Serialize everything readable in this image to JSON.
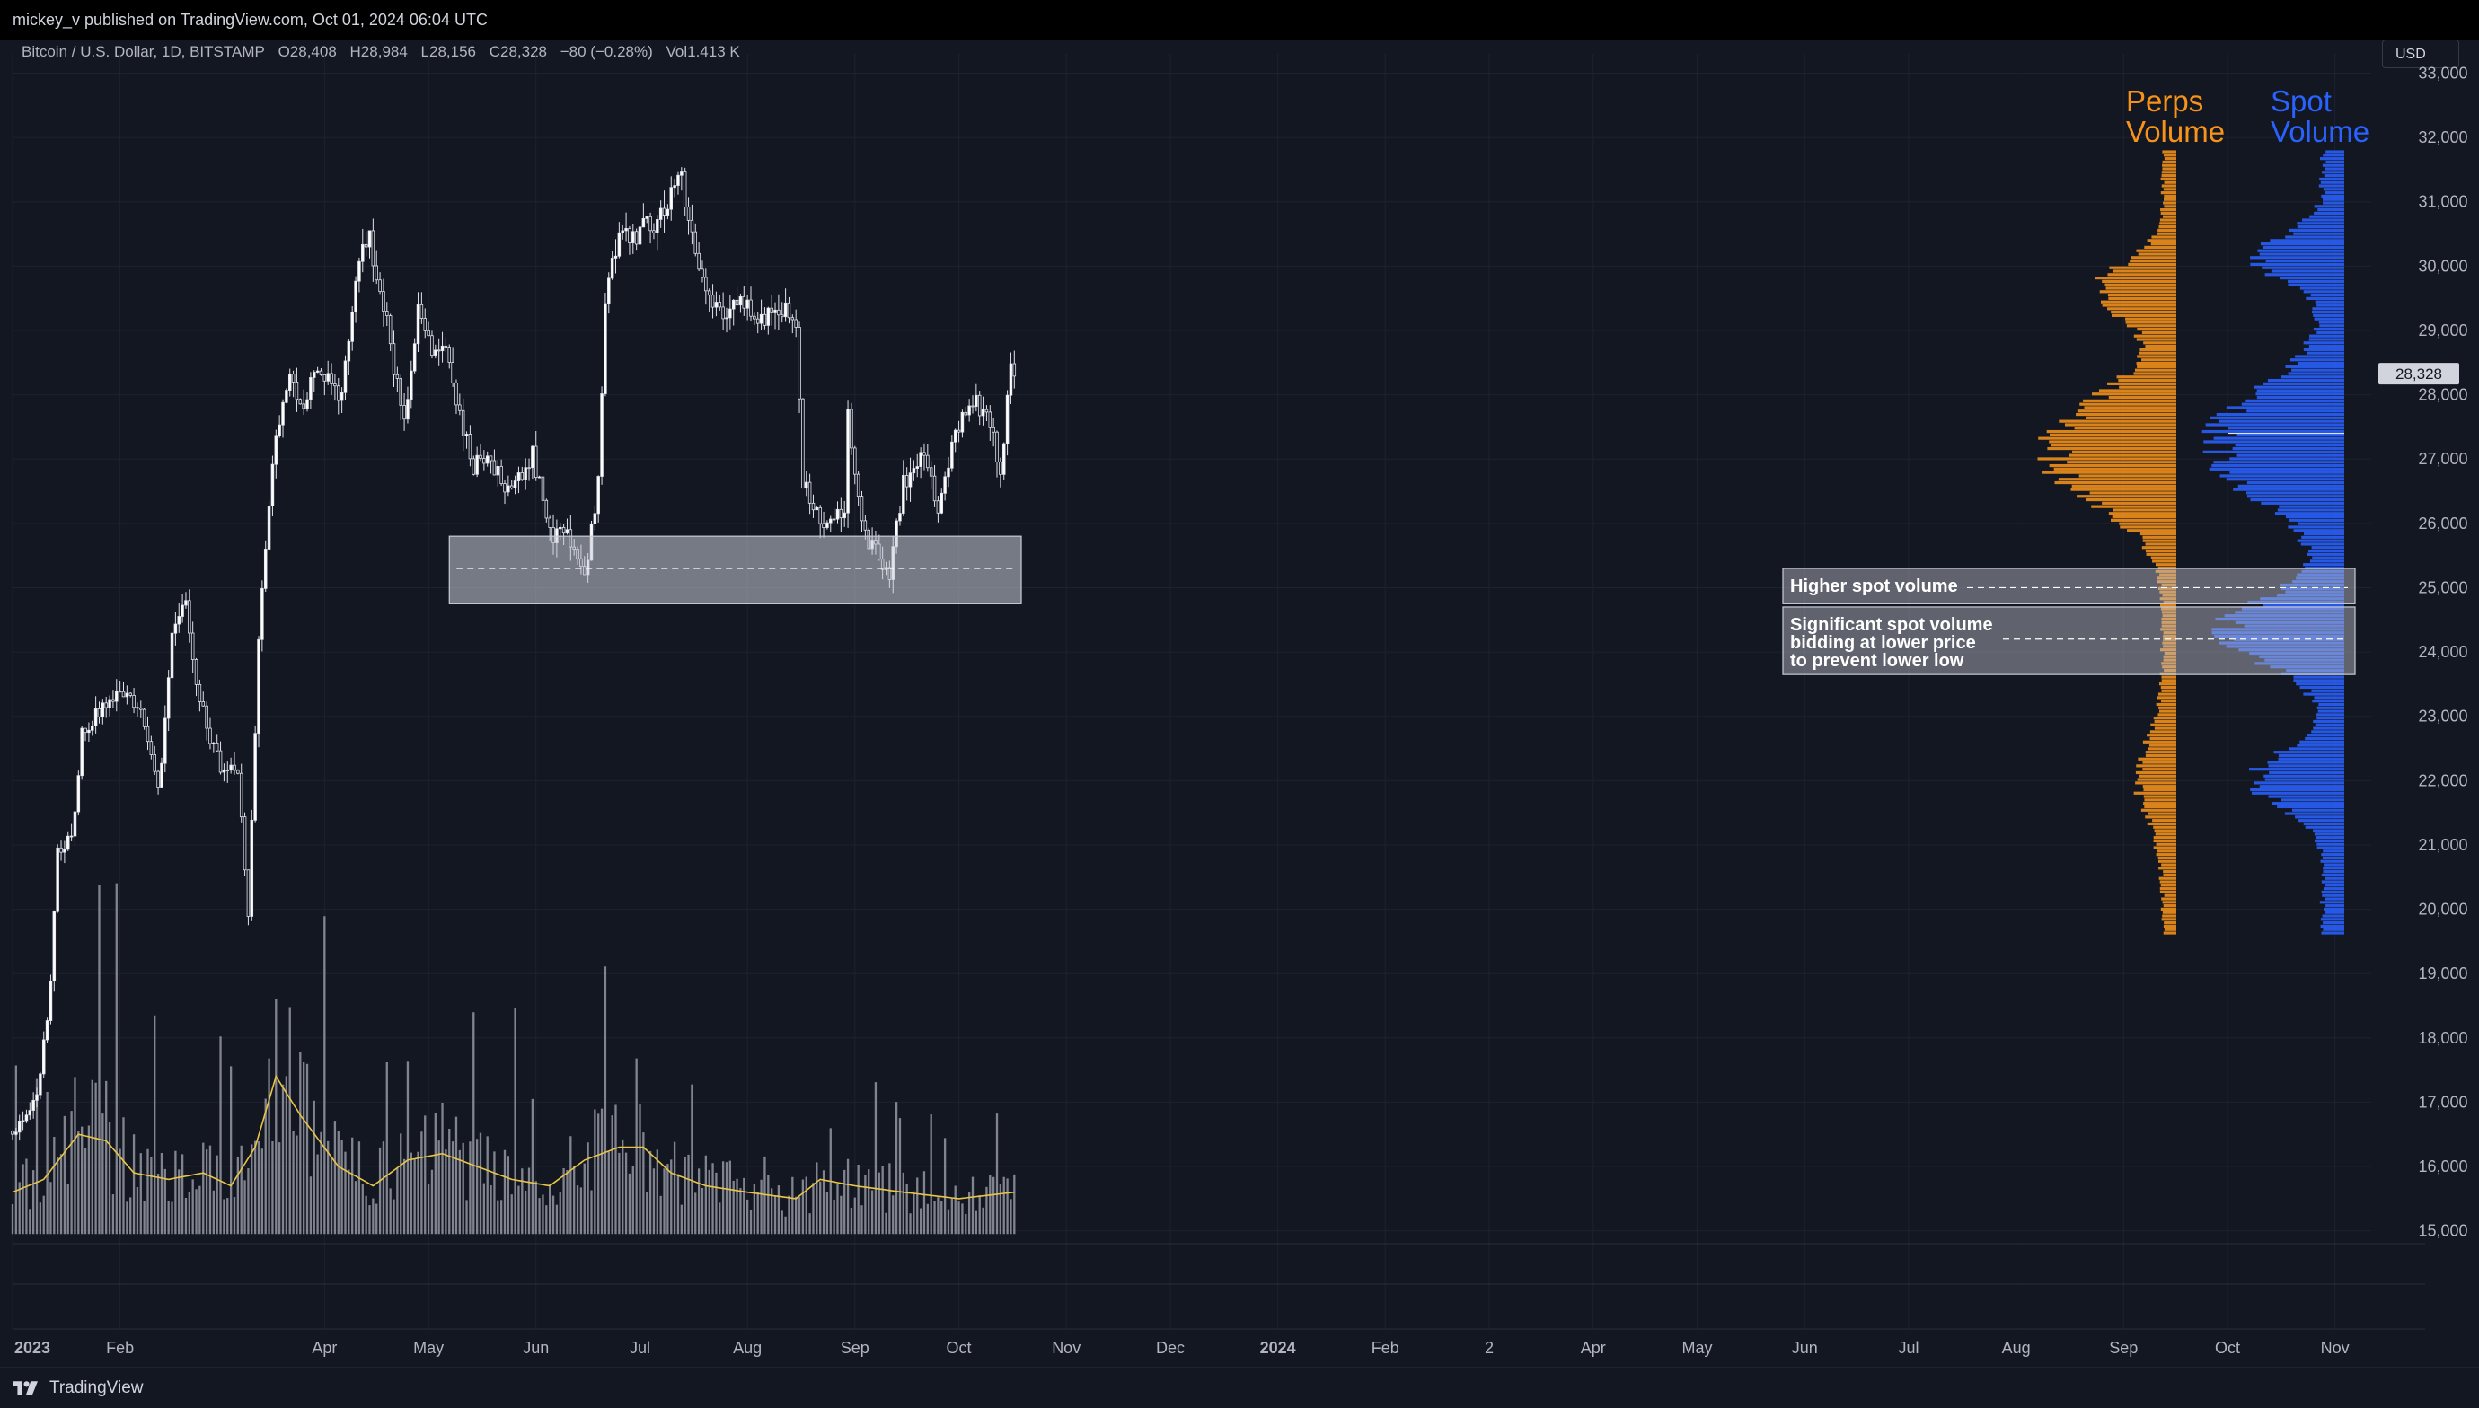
{
  "header": {
    "published": "mickey_v published on TradingView.com, Oct 01, 2024 06:04 UTC"
  },
  "legend": {
    "symbol": "Bitcoin / U.S. Dollar, 1D, BITSTAMP",
    "open": "O28,408",
    "high": "H28,984",
    "low": "L28,156",
    "close": "C28,328",
    "change": "−80 (−0.28%)",
    "volume": "Vol1.413 K"
  },
  "currency_button": "USD",
  "footer": {
    "brand": "TradingView"
  },
  "colors": {
    "background": "#131722",
    "perps": "#f7931a",
    "spot": "#2962ff",
    "volume_ma": "#e8c547",
    "candles": "#e0e3eb"
  },
  "chart_data": {
    "type": "candlestick",
    "title": "",
    "ylim": [
      14800,
      33300
    ],
    "price_ticks": [
      15000,
      16000,
      17000,
      18000,
      19000,
      20000,
      21000,
      22000,
      23000,
      24000,
      25000,
      26000,
      27000,
      28000,
      29000,
      30000,
      31000,
      32000,
      33000
    ],
    "price_tick_labels": [
      "15,000",
      "16,000",
      "17,000",
      "18,000",
      "19,000",
      "20,000",
      "21,000",
      "22,000",
      "23,000",
      "24,000",
      "25,000",
      "26,000",
      "27,000",
      "28,000",
      "29,000",
      "30,000",
      "31,000",
      "32,000",
      "33,000"
    ],
    "time_labels": [
      {
        "label": "2023",
        "date": "2023-01-01",
        "bold": true
      },
      {
        "label": "Feb",
        "date": "2023-02-01"
      },
      {
        "label": "Apr",
        "date": "2023-04-01"
      },
      {
        "label": "May",
        "date": "2023-05-01"
      },
      {
        "label": "Jun",
        "date": "2023-06-01"
      },
      {
        "label": "Jul",
        "date": "2023-07-01"
      },
      {
        "label": "Aug",
        "date": "2023-08-01"
      },
      {
        "label": "Sep",
        "date": "2023-09-01"
      },
      {
        "label": "Oct",
        "date": "2023-10-01"
      },
      {
        "label": "Nov",
        "date": "2023-11-01"
      },
      {
        "label": "Dec",
        "date": "2023-12-01"
      },
      {
        "label": "2024",
        "date": "2024-01-01",
        "bold": true
      },
      {
        "label": "Feb",
        "date": "2024-02-01"
      },
      {
        "label": "2",
        "date": "2024-03-02"
      },
      {
        "label": "Apr",
        "date": "2024-04-01"
      },
      {
        "label": "May",
        "date": "2024-05-01"
      },
      {
        "label": "Jun",
        "date": "2024-06-01"
      },
      {
        "label": "Jul",
        "date": "2024-07-01"
      },
      {
        "label": "Aug",
        "date": "2024-08-01"
      },
      {
        "label": "Sep",
        "date": "2024-09-01"
      },
      {
        "label": "Oct",
        "date": "2024-10-01"
      },
      {
        "label": "Nov",
        "date": "2024-11-01"
      }
    ],
    "close_path": [
      [
        "2023-01-01",
        16550
      ],
      [
        "2023-01-08",
        17100
      ],
      [
        "2023-01-12",
        18800
      ],
      [
        "2023-01-14",
        20900
      ],
      [
        "2023-01-18",
        21100
      ],
      [
        "2023-01-21",
        22700
      ],
      [
        "2023-01-25",
        23000
      ],
      [
        "2023-01-30",
        23300
      ],
      [
        "2023-02-03",
        23400
      ],
      [
        "2023-02-08",
        22900
      ],
      [
        "2023-02-12",
        21800
      ],
      [
        "2023-02-16",
        24200
      ],
      [
        "2023-02-20",
        24800
      ],
      [
        "2023-02-24",
        23200
      ],
      [
        "2023-03-02",
        22200
      ],
      [
        "2023-03-07",
        22100
      ],
      [
        "2023-03-10",
        20000
      ],
      [
        "2023-03-13",
        24200
      ],
      [
        "2023-03-18",
        27400
      ],
      [
        "2023-03-22",
        28200
      ],
      [
        "2023-03-26",
        27800
      ],
      [
        "2023-03-30",
        28400
      ],
      [
        "2023-04-02",
        28200
      ],
      [
        "2023-04-06",
        28000
      ],
      [
        "2023-04-11",
        30200
      ],
      [
        "2023-04-14",
        30400
      ],
      [
        "2023-04-19",
        29100
      ],
      [
        "2023-04-24",
        27500
      ],
      [
        "2023-04-28",
        29400
      ],
      [
        "2023-05-02",
        28700
      ],
      [
        "2023-05-06",
        28800
      ],
      [
        "2023-05-10",
        27600
      ],
      [
        "2023-05-14",
        26900
      ],
      [
        "2023-05-20",
        26900
      ],
      [
        "2023-05-25",
        26400
      ],
      [
        "2023-05-31",
        27100
      ],
      [
        "2023-06-05",
        25800
      ],
      [
        "2023-06-10",
        25900
      ],
      [
        "2023-06-15",
        25100
      ],
      [
        "2023-06-19",
        26600
      ],
      [
        "2023-06-21",
        29500
      ],
      [
        "2023-06-25",
        30600
      ],
      [
        "2023-06-30",
        30500
      ],
      [
        "2023-07-05",
        30700
      ],
      [
        "2023-07-13",
        31300
      ],
      [
        "2023-07-18",
        30000
      ],
      [
        "2023-07-24",
        29300
      ],
      [
        "2023-07-30",
        29400
      ],
      [
        "2023-08-05",
        29100
      ],
      [
        "2023-08-10",
        29400
      ],
      [
        "2023-08-15",
        29200
      ],
      [
        "2023-08-17",
        26600
      ],
      [
        "2023-08-22",
        26000
      ],
      [
        "2023-08-29",
        26100
      ],
      [
        "2023-08-30",
        27700
      ],
      [
        "2023-09-03",
        25900
      ],
      [
        "2023-09-11",
        25200
      ],
      [
        "2023-09-15",
        26600
      ],
      [
        "2023-09-20",
        27100
      ],
      [
        "2023-09-25",
        26300
      ],
      [
        "2023-09-28",
        27000
      ],
      [
        "2023-10-02",
        27600
      ],
      [
        "2023-10-06",
        27900
      ],
      [
        "2023-10-10",
        27500
      ],
      [
        "2023-10-13",
        26800
      ],
      [
        "2023-10-16",
        28400
      ],
      [
        "2023-10-17",
        28328
      ]
    ],
    "volume_ma_path": [
      [
        "2023-01-01",
        15600
      ],
      [
        "2023-01-10",
        15800
      ],
      [
        "2023-01-20",
        16500
      ],
      [
        "2023-01-28",
        16400
      ],
      [
        "2023-02-05",
        15900
      ],
      [
        "2023-02-15",
        15800
      ],
      [
        "2023-02-25",
        15900
      ],
      [
        "2023-03-05",
        15700
      ],
      [
        "2023-03-12",
        16300
      ],
      [
        "2023-03-18",
        17400
      ],
      [
        "2023-03-25",
        16800
      ],
      [
        "2023-04-05",
        16000
      ],
      [
        "2023-04-15",
        15700
      ],
      [
        "2023-04-25",
        16100
      ],
      [
        "2023-05-05",
        16200
      ],
      [
        "2023-05-15",
        16000
      ],
      [
        "2023-05-25",
        15800
      ],
      [
        "2023-06-05",
        15700
      ],
      [
        "2023-06-15",
        16100
      ],
      [
        "2023-06-25",
        16300
      ],
      [
        "2023-07-02",
        16300
      ],
      [
        "2023-07-10",
        15900
      ],
      [
        "2023-07-20",
        15700
      ],
      [
        "2023-08-01",
        15600
      ],
      [
        "2023-08-15",
        15500
      ],
      [
        "2023-08-22",
        15800
      ],
      [
        "2023-09-01",
        15700
      ],
      [
        "2023-09-15",
        15600
      ],
      [
        "2023-10-01",
        15500
      ],
      [
        "2023-10-17",
        15600
      ]
    ],
    "zones": [
      {
        "name": "support-box",
        "from": "2023-05-07",
        "to": "2023-10-19",
        "low": 24750,
        "high": 25800,
        "mid": 25300
      }
    ],
    "last_price": {
      "value": 28328,
      "label": "28,328"
    },
    "volume_profiles": [
      {
        "name": "Perps Volume",
        "title_lines": [
          "Perps",
          "Volume"
        ],
        "color": "#f7931a",
        "range": [
          19600,
          31800
        ]
      },
      {
        "name": "Spot Volume",
        "title_lines": [
          "Spot",
          "Volume"
        ],
        "color": "#2962ff",
        "range": [
          19600,
          31800
        ]
      }
    ],
    "annotations": [
      {
        "name": "higher-spot-volume",
        "lines": [
          "Higher spot volume"
        ],
        "low": 24750,
        "high": 25300,
        "level": 25000
      },
      {
        "name": "significant-spot-volume",
        "lines": [
          "Significant spot volume",
          "bidding at lower price",
          "to prevent lower low"
        ],
        "low": 23650,
        "high": 24700,
        "level": 24200
      }
    ]
  }
}
